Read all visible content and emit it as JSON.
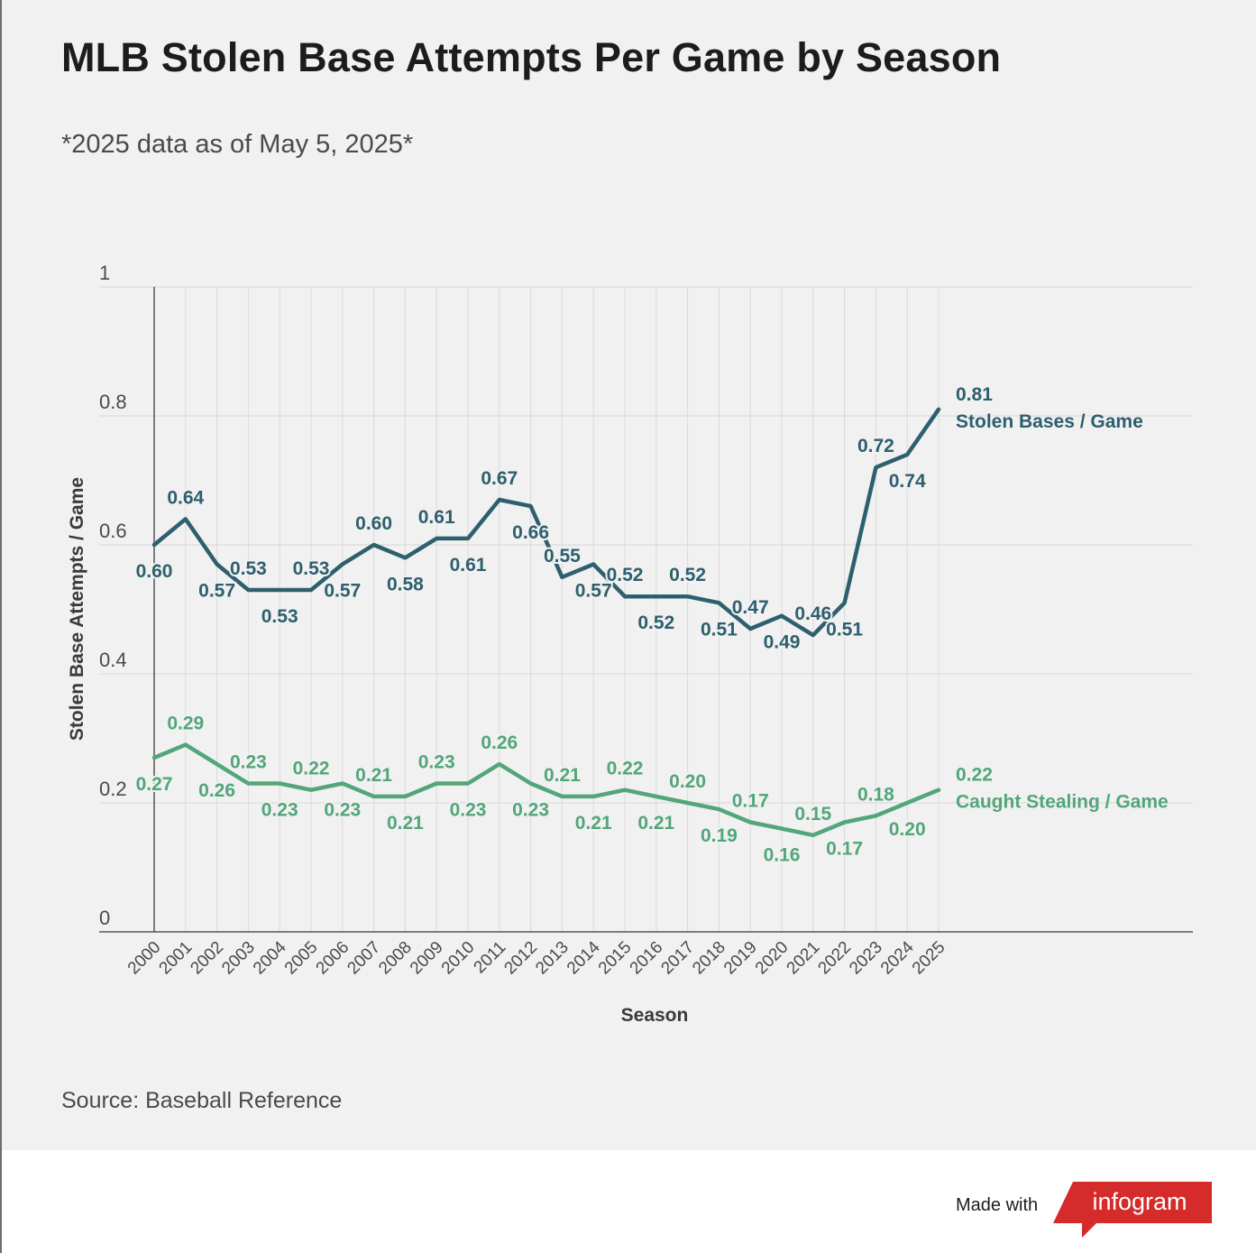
{
  "title": "MLB Stolen Base Attempts Per Game by Season",
  "subtitle": "*2025 data as of May 5, 2025*",
  "source": "Source: Baseball Reference",
  "footer": {
    "made_with": "Made with",
    "brand": "infogram"
  },
  "colors": {
    "stolen": "#2d5f6e",
    "caught": "#52a679",
    "brand": "#d52b2b"
  },
  "chart_data": {
    "type": "line",
    "xlabel": "Season",
    "ylabel": "Stolen Base Attempts / Game",
    "ylim": [
      0,
      1
    ],
    "yticks": [
      "0",
      "0.2",
      "0.4",
      "0.6",
      "0.8",
      "1"
    ],
    "grid": true,
    "categories": [
      "2000",
      "2001",
      "2002",
      "2003",
      "2004",
      "2005",
      "2006",
      "2007",
      "2008",
      "2009",
      "2010",
      "2011",
      "2012",
      "2013",
      "2014",
      "2015",
      "2016",
      "2017",
      "2018",
      "2019",
      "2020",
      "2021",
      "2022",
      "2023",
      "2024",
      "2025"
    ],
    "series": [
      {
        "name": "Stolen Bases / Game",
        "values": [
          0.6,
          0.64,
          0.57,
          0.53,
          0.53,
          0.53,
          0.57,
          0.6,
          0.58,
          0.61,
          0.61,
          0.67,
          0.66,
          0.55,
          0.57,
          0.52,
          0.52,
          0.52,
          0.51,
          0.47,
          0.49,
          0.46,
          0.51,
          0.72,
          0.74,
          0.81
        ],
        "labels": [
          "0.60",
          "0.64",
          "0.57",
          "0.53",
          "0.53",
          "0.53",
          "0.57",
          "0.60",
          "0.58",
          "0.61",
          "0.61",
          "0.67",
          "0.66",
          "0.55",
          "0.57",
          "0.52",
          "0.52",
          "0.52",
          "0.51",
          "0.47",
          "0.49",
          "0.46",
          "0.51",
          "0.72",
          "0.74",
          "0.81"
        ]
      },
      {
        "name": "Caught Stealing / Game",
        "values": [
          0.27,
          0.29,
          0.26,
          0.23,
          0.23,
          0.22,
          0.23,
          0.21,
          0.21,
          0.23,
          0.23,
          0.26,
          0.23,
          0.21,
          0.21,
          0.22,
          0.21,
          0.2,
          0.19,
          0.17,
          0.16,
          0.15,
          0.17,
          0.18,
          0.2,
          0.22
        ],
        "labels": [
          "0.27",
          "0.29",
          "0.26",
          "0.23",
          "0.23",
          "0.22",
          "0.23",
          "0.21",
          "0.21",
          "0.23",
          "0.23",
          "0.26",
          "0.23",
          "0.21",
          "0.21",
          "0.22",
          "0.21",
          "0.20",
          "0.19",
          "0.17",
          "0.16",
          "0.15",
          "0.17",
          "0.18",
          "0.20",
          "0.22"
        ]
      }
    ]
  }
}
